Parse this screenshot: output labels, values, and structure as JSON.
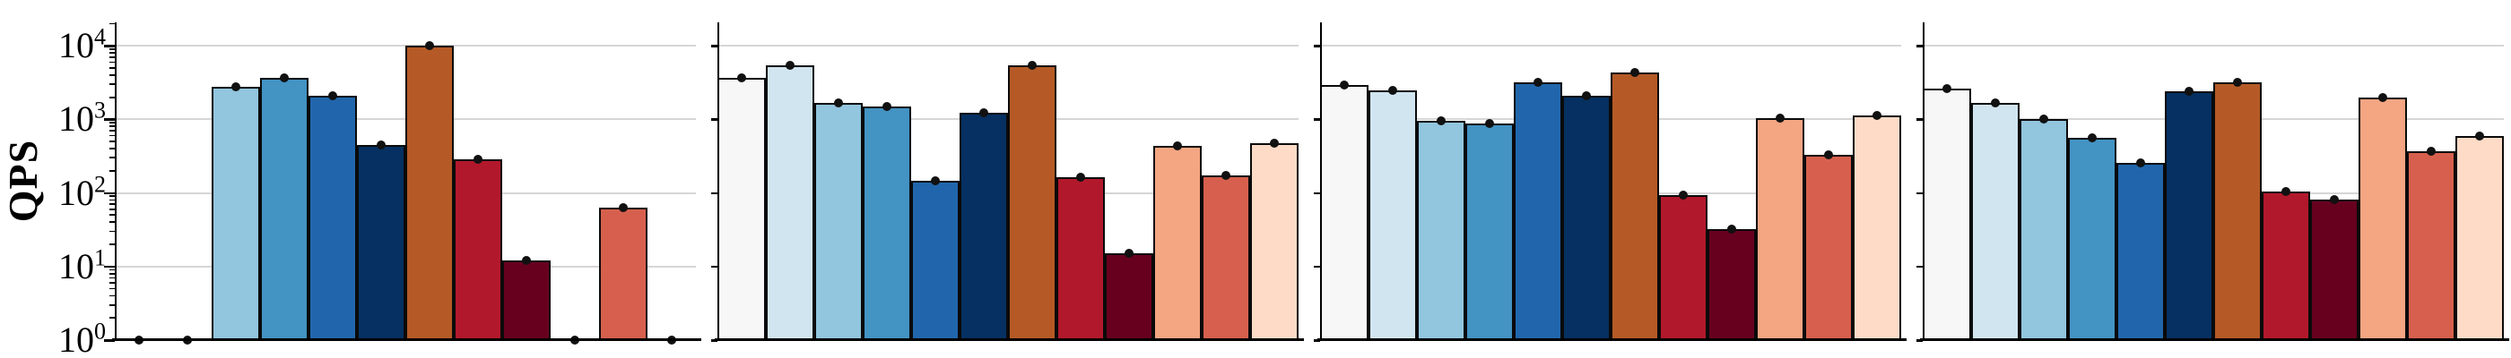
{
  "chart_data": {
    "type": "bar",
    "title": "",
    "ylabel": "QPS",
    "yscale": "log",
    "ylim": [
      1,
      20000
    ],
    "ytick_exponents": [
      0,
      1,
      2,
      3,
      4
    ],
    "grid": "horizontal-major-decades",
    "legend": "none",
    "marker_style": "black dot at top center of every bar",
    "bar_colors": [
      "#f7f7f7",
      "#d1e5f0",
      "#92c5de",
      "#4393c3",
      "#2166ac",
      "#053061",
      "#b55a26",
      "#b2182b",
      "#67001f",
      "#f4a582",
      "#d6604d",
      "#fddbc7"
    ],
    "panels": [
      {
        "values": [
          1,
          1,
          2750,
          3650,
          2080,
          450,
          10000,
          290,
          12,
          1,
          63,
          1
        ]
      },
      {
        "values": [
          3650,
          5400,
          1700,
          1500,
          145,
          1250,
          5500,
          165,
          15,
          440,
          175,
          470
        ]
      },
      {
        "values": [
          2900,
          2500,
          970,
          890,
          3170,
          2080,
          4300,
          93,
          32,
          1030,
          330,
          1120
        ]
      },
      {
        "values": [
          2600,
          1700,
          1000,
          570,
          260,
          2400,
          3200,
          105,
          82,
          2000,
          370,
          590
        ]
      }
    ]
  }
}
